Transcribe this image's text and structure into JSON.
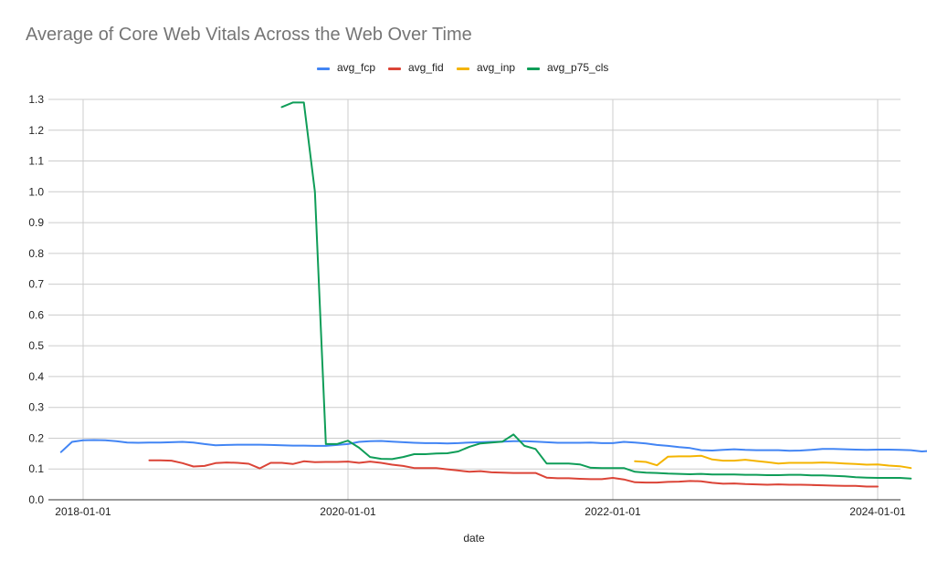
{
  "chart_data": {
    "type": "line",
    "title": "Average of Core Web Vitals Across the Web Over Time",
    "xlabel": "date",
    "ylabel": "",
    "ylim": [
      0,
      1.3
    ],
    "yticks": [
      "0.0",
      "0.1",
      "0.2",
      "0.3",
      "0.4",
      "0.5",
      "0.6",
      "0.7",
      "0.8",
      "0.9",
      "1.0",
      "1.1",
      "1.2",
      "1.3"
    ],
    "xticks": [
      "2018-01-01",
      "2020-01-01",
      "2022-01-01",
      "2024-01-01"
    ],
    "x_start": "2017-11",
    "legend_position": "top",
    "grid": true,
    "series": [
      {
        "name": "avg_fcp",
        "color": "#4285f4",
        "values": [
          0.155,
          0.188,
          0.193,
          0.194,
          0.193,
          0.19,
          0.186,
          0.185,
          0.186,
          0.186,
          0.187,
          0.188,
          0.186,
          0.181,
          0.177,
          0.178,
          0.179,
          0.179,
          0.179,
          0.178,
          0.177,
          0.176,
          0.176,
          0.175,
          0.175,
          0.178,
          0.181,
          0.188,
          0.19,
          0.191,
          0.189,
          0.187,
          0.185,
          0.184,
          0.184,
          0.183,
          0.184,
          0.186,
          0.187,
          0.188,
          0.189,
          0.19,
          0.19,
          0.189,
          0.187,
          0.185,
          0.185,
          0.185,
          0.186,
          0.184,
          0.184,
          0.188,
          0.186,
          0.183,
          0.178,
          0.175,
          0.171,
          0.168,
          0.161,
          0.16,
          0.162,
          0.164,
          0.162,
          0.161,
          0.161,
          0.161,
          0.159,
          0.16,
          0.162,
          0.165,
          0.165,
          0.164,
          0.163,
          0.162,
          0.163,
          0.163,
          0.162,
          0.161,
          0.157,
          0.159,
          0.157
        ]
      },
      {
        "name": "avg_fid",
        "color": "#db4437",
        "values": [
          null,
          null,
          null,
          null,
          null,
          null,
          null,
          null,
          0.128,
          0.128,
          0.127,
          0.119,
          0.108,
          0.11,
          0.119,
          0.121,
          0.12,
          0.117,
          0.102,
          0.12,
          0.12,
          0.116,
          0.125,
          0.122,
          0.123,
          0.123,
          0.124,
          0.12,
          0.124,
          0.12,
          0.114,
          0.11,
          0.103,
          0.103,
          0.103,
          0.099,
          0.095,
          0.091,
          0.093,
          0.089,
          0.088,
          0.087,
          0.087,
          0.087,
          0.072,
          0.07,
          0.07,
          0.068,
          0.067,
          0.067,
          0.071,
          0.066,
          0.057,
          0.056,
          0.056,
          0.058,
          0.059,
          0.061,
          0.06,
          0.055,
          0.052,
          0.053,
          0.051,
          0.05,
          0.049,
          0.05,
          0.049,
          0.049,
          0.048,
          0.047,
          0.046,
          0.045,
          0.045,
          0.043,
          0.043
        ]
      },
      {
        "name": "avg_inp",
        "color": "#f4b400",
        "values": [
          null,
          null,
          null,
          null,
          null,
          null,
          null,
          null,
          null,
          null,
          null,
          null,
          null,
          null,
          null,
          null,
          null,
          null,
          null,
          null,
          null,
          null,
          null,
          null,
          null,
          null,
          null,
          null,
          null,
          null,
          null,
          null,
          null,
          null,
          null,
          null,
          null,
          null,
          null,
          null,
          null,
          null,
          null,
          null,
          null,
          null,
          null,
          null,
          null,
          null,
          null,
          null,
          0.125,
          0.123,
          0.112,
          0.14,
          0.141,
          0.141,
          0.143,
          0.131,
          0.127,
          0.127,
          0.13,
          0.126,
          0.122,
          0.118,
          0.12,
          0.12,
          0.12,
          0.121,
          0.12,
          0.118,
          0.116,
          0.114,
          0.115,
          0.111,
          0.109,
          0.103
        ]
      },
      {
        "name": "avg_p75_cls",
        "color": "#0f9d58",
        "values": [
          null,
          null,
          null,
          null,
          null,
          null,
          null,
          null,
          null,
          null,
          null,
          null,
          null,
          null,
          null,
          null,
          null,
          null,
          null,
          null,
          1.275,
          1.29,
          1.29,
          1.0,
          0.181,
          0.181,
          0.192,
          0.169,
          0.139,
          0.133,
          0.132,
          0.139,
          0.148,
          0.148,
          0.15,
          0.151,
          0.157,
          0.172,
          0.183,
          0.186,
          0.189,
          0.212,
          0.175,
          0.165,
          0.118,
          0.118,
          0.118,
          0.115,
          0.104,
          0.103,
          0.103,
          0.103,
          0.091,
          0.088,
          0.087,
          0.085,
          0.084,
          0.083,
          0.084,
          0.082,
          0.082,
          0.082,
          0.081,
          0.081,
          0.08,
          0.08,
          0.081,
          0.081,
          0.079,
          0.079,
          0.078,
          0.076,
          0.073,
          0.072,
          0.071,
          0.071,
          0.071,
          0.069
        ]
      }
    ]
  }
}
